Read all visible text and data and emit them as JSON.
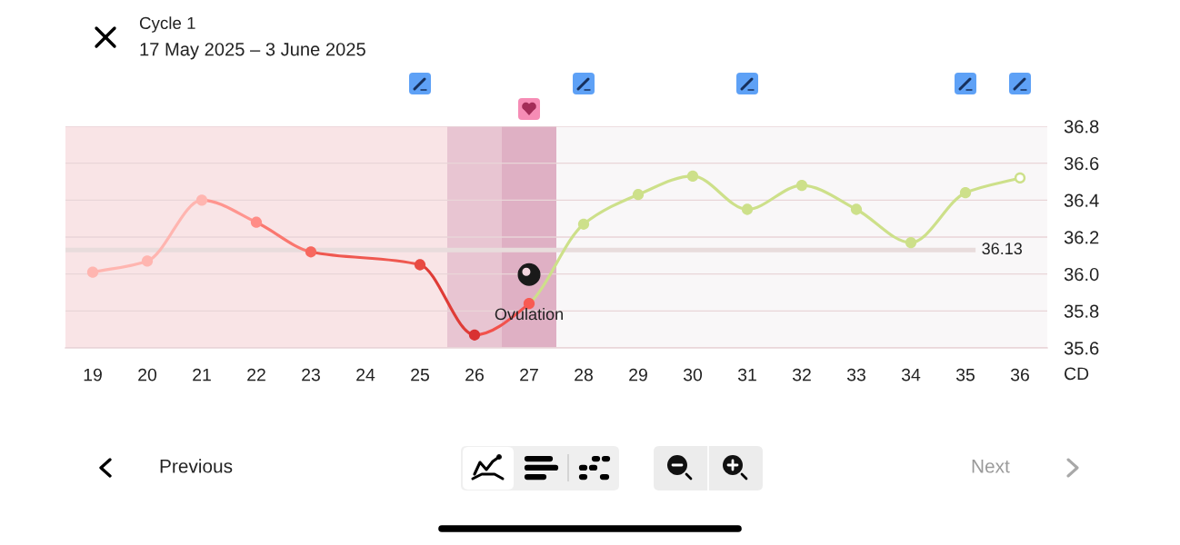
{
  "chart_data": {
    "type": "line",
    "title": "Cycle 1",
    "subtitle": "17 May 2025 – 3 June 2025",
    "xlabel": "CD",
    "x": [
      19,
      20,
      21,
      22,
      23,
      24,
      25,
      26,
      27,
      28,
      29,
      30,
      31,
      32,
      33,
      34,
      35,
      36
    ],
    "series": [
      {
        "type": "line",
        "x": [
          19,
          20,
          21
        ],
        "values": [
          36.01,
          36.07,
          36.4
        ],
        "color": "#ffb5b0"
      },
      {
        "x": [
          21,
          22
        ],
        "values": [
          36.4,
          36.28
        ],
        "color": "#ff958f"
      },
      {
        "x": [
          22,
          23
        ],
        "values": [
          36.28,
          36.12
        ],
        "color": "#fa776f"
      },
      {
        "x": [
          23,
          25
        ],
        "values": [
          36.12,
          36.05
        ],
        "color": "#ef5850"
      },
      {
        "x": [
          25,
          26
        ],
        "values": [
          36.05,
          35.67
        ],
        "color": "#df3c37"
      },
      {
        "x": [
          26,
          27
        ],
        "values": [
          35.67,
          35.84
        ],
        "color": "#f2524c"
      },
      {
        "x": [
          27,
          28,
          29,
          30,
          31,
          32,
          33,
          34,
          35,
          36
        ],
        "values": [
          35.84,
          36.27,
          36.43,
          36.53,
          36.35,
          36.48,
          36.35,
          36.17,
          36.44,
          36.52
        ],
        "color": "#cde08a"
      },
      {
        "type": "scatter",
        "marker": "circle",
        "values": [
          36.01,
          36.07,
          36.4,
          36.28,
          36.12,
          null,
          36.05,
          35.67,
          35.84,
          36.27,
          36.43,
          36.53,
          36.35,
          36.48,
          36.35,
          36.17,
          36.44,
          36.52
        ],
        "colors": [
          "#ffb5b0",
          "#ffb5b0",
          "#ffb5b0",
          "#ff8c86",
          "#f7685f",
          null,
          "#e84a42",
          "#d93232",
          "#f85a52",
          "#cde08a",
          "#cde08a",
          "#cde08a",
          "#cde08a",
          "#cde08a",
          "#cde08a",
          "#cde08a",
          "#cde08a",
          "#cde08a"
        ]
      },
      {
        "type": "scatter",
        "marker": "circle",
        "x": [
          36
        ],
        "values": [
          36.52
        ],
        "color": "#ffffff"
      }
    ],
    "xlim": [
      18.5,
      36.5
    ],
    "xticks": [
      19,
      20,
      21,
      22,
      23,
      24,
      25,
      26,
      27,
      28,
      29,
      30,
      31,
      32,
      33,
      34,
      35,
      36
    ],
    "ylim": [
      35.6,
      36.8
    ],
    "yticks": [
      35.6,
      35.8,
      {
        "value": 36,
        "label": "36.0"
      },
      36.2,
      36.4,
      36.6,
      36.8
    ],
    "grid": "y",
    "ref_lines": [
      {
        "axis": "y",
        "value": 36.13,
        "label": "36.13",
        "color": "#e8dcdc"
      }
    ],
    "bands": [
      {
        "axis": "x",
        "from": 18.5,
        "to": 25.5,
        "color": "#f9e4e6"
      },
      {
        "axis": "x",
        "from": 25.5,
        "to": 26.5,
        "color": "#e8c5d2"
      },
      {
        "axis": "x",
        "from": 26.5,
        "to": 27.5,
        "color": "#dfb0c4"
      },
      {
        "axis": "x",
        "from": 27.5,
        "to": 36.5,
        "color": "#f9f7f8"
      }
    ],
    "annotations": [
      {
        "text": "Ovulation",
        "x": 27,
        "y": 35.84
      },
      "Previous",
      "Next"
    ]
  }
}
